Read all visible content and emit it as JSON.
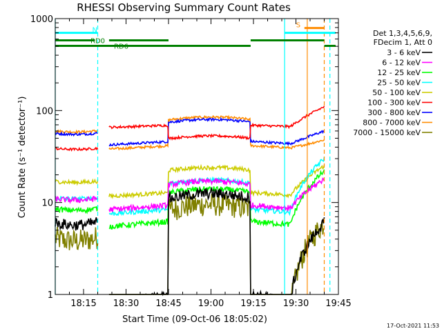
{
  "chart_data": {
    "type": "line",
    "title": "RHESSI Observing Summary Count Rates",
    "xlabel": "Start Time (09-Oct-06 18:05:02)",
    "ylabel": "Count Rate (s⁻¹ detector⁻¹)",
    "y_scale": "log",
    "ylim": [
      1,
      1000
    ],
    "xlim": [
      "18:05",
      "19:45"
    ],
    "x_ticks": [
      "18:15",
      "18:30",
      "18:45",
      "19:00",
      "19:15",
      "19:30",
      "19:45"
    ],
    "y_ticks": [
      "1",
      "10",
      "100",
      "1000"
    ],
    "legend": {
      "position": "right",
      "header": [
        "Det 1,3,4,5,6,9,",
        "FDecim 1, Att 0"
      ]
    },
    "series": [
      {
        "name": "3 - 6 keV",
        "color": "#000000",
        "base": 12.5,
        "amp": 2.2,
        "noise": 0.14,
        "dip": 0.06,
        "end": 6
      },
      {
        "name": "6 - 12 keV",
        "color": "#ff00ff",
        "base": 17,
        "amp": 1.6,
        "noise": 0.07,
        "dip": 0.48,
        "end": 18
      },
      {
        "name": "12 - 25 keV",
        "color": "#00ff00",
        "base": 14,
        "amp": 1.7,
        "noise": 0.07,
        "dip": 0.38,
        "end": 22
      },
      {
        "name": "25 - 50 keV",
        "color": "#00ffff",
        "base": 17.5,
        "amp": 1.6,
        "noise": 0.06,
        "dip": 0.42,
        "end": 30
      },
      {
        "name": "50 - 100 keV",
        "color": "#cccc00",
        "base": 24,
        "amp": 1.45,
        "noise": 0.05,
        "dip": 0.48,
        "end": 25
      },
      {
        "name": "100 - 300 keV",
        "color": "#ff0000",
        "base": 53,
        "amp": 1.4,
        "noise": 0.03,
        "high": 65,
        "end": 110
      },
      {
        "name": "300 - 800 keV",
        "color": "#0000ff",
        "base": 80,
        "amp": 1.45,
        "noise": 0.03,
        "dip": 0.52,
        "end": 60
      },
      {
        "name": "800 - 7000 keV",
        "color": "#ff8c00",
        "base": 85,
        "amp": 1.45,
        "noise": 0.03,
        "dip": 0.44,
        "end": 48
      },
      {
        "name": "7000 - 15000 keV",
        "color": "#808000",
        "base": 9.5,
        "amp": 2.5,
        "noise": 0.3,
        "dip": 0.06,
        "end": 6
      }
    ],
    "gaps": [
      {
        "from": "18:20",
        "to": "18:24"
      },
      {
        "from": "18:45",
        "to": "18:45"
      },
      {
        "from": "19:14",
        "to": "19:14"
      }
    ],
    "annotations": {
      "bars_top": [
        {
          "label": "N",
          "from": "18:05",
          "to": "18:20",
          "y": 700,
          "color": "#00ffff"
        },
        {
          "label": "",
          "from": "19:26",
          "to": "19:44",
          "y": 700,
          "color": "#00ffff"
        },
        {
          "label": "S",
          "from": "19:33",
          "to": "19:40",
          "y": 790,
          "color": "#ff8c00"
        }
      ],
      "bars_green": [
        {
          "label": "RD0",
          "from": "18:05",
          "to": "18:19",
          "y": 580
        },
        {
          "label": "RD6",
          "from": "18:05",
          "to": "18:45",
          "y": 505
        },
        {
          "label": "",
          "from": "18:24",
          "to": "18:45",
          "y": 580
        },
        {
          "label": "",
          "from": "18:45",
          "to": "19:14",
          "y": 505
        },
        {
          "label": "",
          "from": "19:14",
          "to": "19:40",
          "y": 580
        },
        {
          "label": "",
          "from": "19:40",
          "to": "19:44",
          "y": 505
        }
      ],
      "vlines": [
        {
          "x": "18:05",
          "color": "#00ffff",
          "dash": false
        },
        {
          "x": "18:20",
          "color": "#00ffff",
          "dash": true
        },
        {
          "x": "19:26",
          "color": "#00ffff",
          "dash": false
        },
        {
          "x": "19:34",
          "color": "#ff8c00",
          "dash": false
        },
        {
          "x": "19:40",
          "color": "#ff8c00",
          "dash": true
        },
        {
          "x": "19:42",
          "color": "#00ffff",
          "dash": true
        }
      ]
    }
  },
  "timestamp": "17-Oct-2021 11:53"
}
